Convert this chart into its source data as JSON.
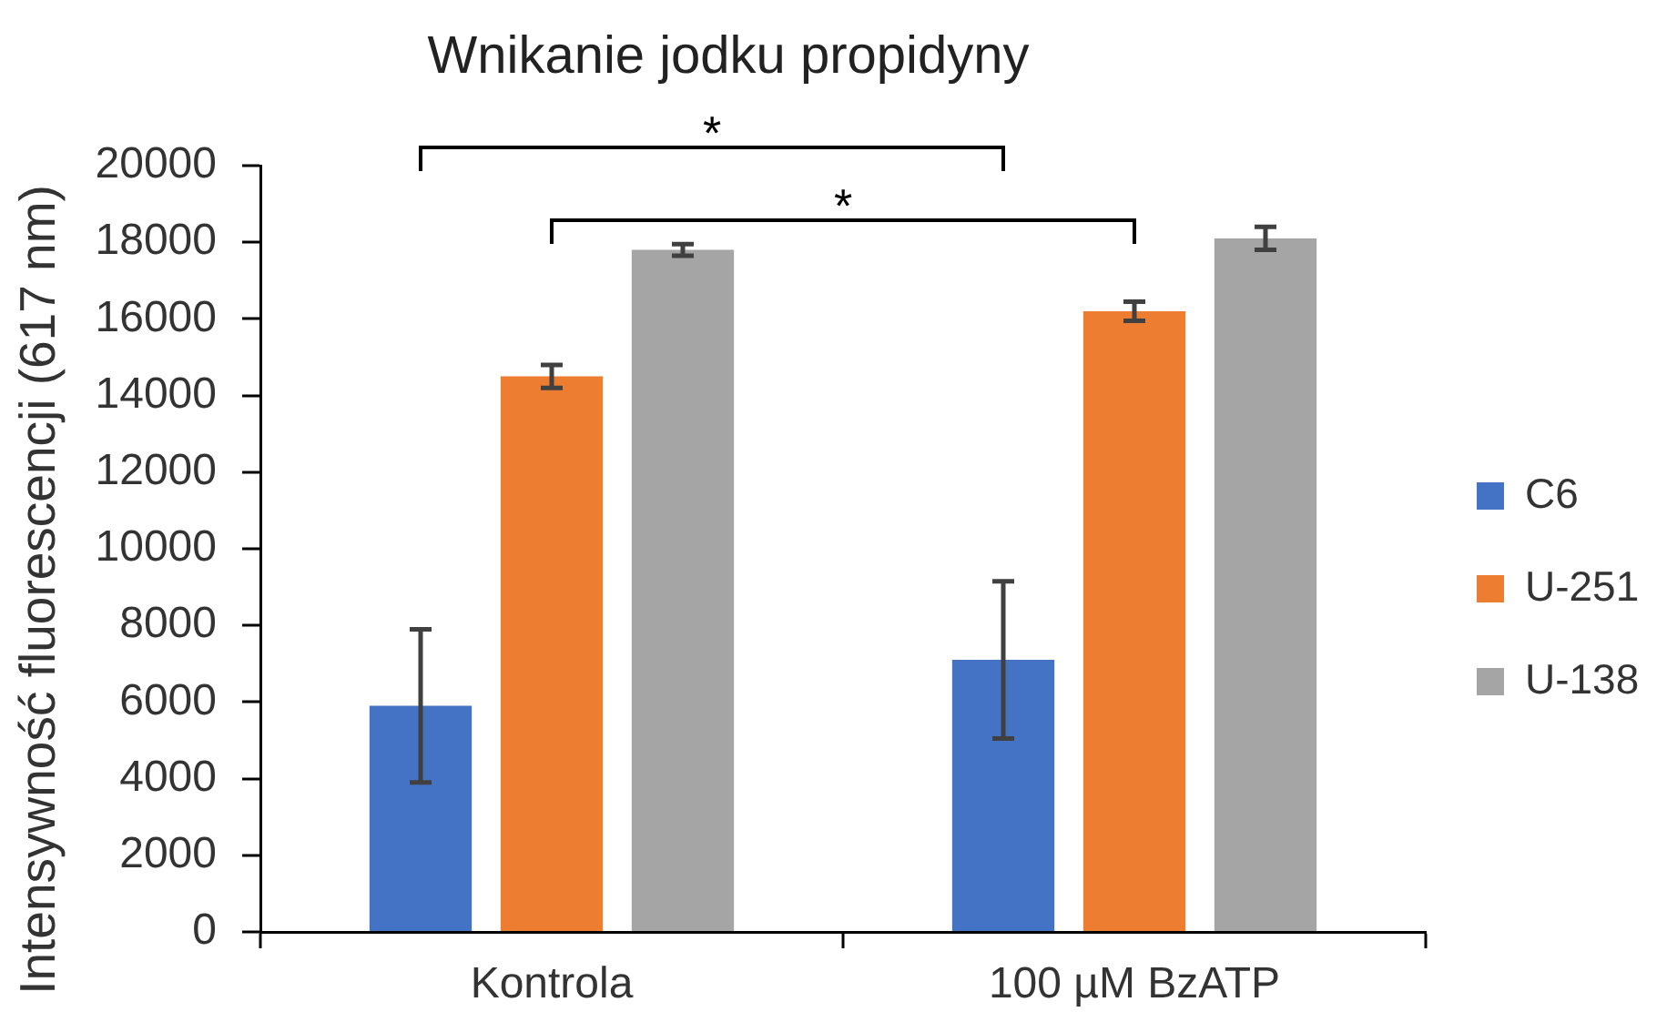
{
  "chart_data": {
    "type": "bar",
    "title": "Wnikanie jodku propidyny",
    "ylabel": "Intensywność fluorescencji (617 nm)",
    "categories": [
      "Kontrola",
      "100 µM BzATP"
    ],
    "series": [
      {
        "name": "C6",
        "color": "#4472c4",
        "values": [
          5900,
          7100
        ],
        "errors": [
          2000,
          2050
        ]
      },
      {
        "name": "U-251",
        "color": "#ed7d31",
        "values": [
          14500,
          16200
        ],
        "errors": [
          300,
          250
        ]
      },
      {
        "name": "U-138",
        "color": "#a5a5a5",
        "values": [
          17800,
          18100
        ],
        "errors": [
          150,
          300
        ]
      }
    ],
    "ylim": [
      0,
      20000
    ],
    "yticks": [
      0,
      2000,
      4000,
      6000,
      8000,
      10000,
      12000,
      14000,
      16000,
      18000,
      20000
    ],
    "grid": false,
    "legend": "right",
    "annotations": [
      "*",
      "*"
    ]
  }
}
